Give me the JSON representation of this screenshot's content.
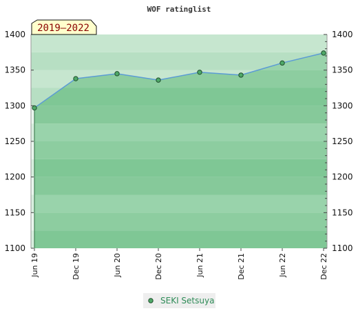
{
  "chart_data": {
    "type": "area",
    "title": "WOF ratinglist",
    "period_label": "2019–2022",
    "categories": [
      "Jun 19",
      "Dec 19",
      "Jun 20",
      "Dec 20",
      "Jun 21",
      "Dec 21",
      "Jun 22",
      "Dec 22"
    ],
    "series": [
      {
        "name": "SEKI Setsuya",
        "values": [
          1297,
          1338,
          1345,
          1336,
          1347,
          1343,
          1360,
          1374
        ]
      }
    ],
    "ylim": [
      1100,
      1400
    ],
    "yticks": [
      1100,
      1150,
      1200,
      1250,
      1300,
      1350,
      1400
    ],
    "grid": true,
    "legend": "bottom-center",
    "colors": {
      "line": "#5b9bd5",
      "area": "#6cbd86",
      "marker": "#4fa968",
      "marker_stroke": "#1f4d2c",
      "legend_text": "#2e8b57",
      "badge_bg": "#ffffcc",
      "badge_text": "#8b0000"
    }
  }
}
